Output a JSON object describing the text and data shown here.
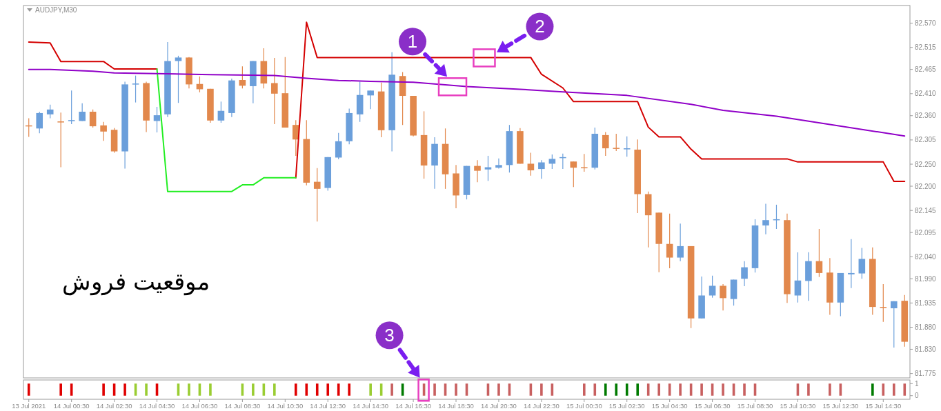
{
  "chart_data": [
    {
      "type": "candlestick",
      "title": "AUDJPY,M30",
      "x": [
        "2021-07-13T22:30",
        "2021-07-13T23:00",
        "2021-07-13T23:30",
        "2021-07-14T00:00",
        "2021-07-14T00:30",
        "2021-07-14T01:00",
        "2021-07-14T01:30",
        "2021-07-14T02:00",
        "2021-07-14T02:30",
        "2021-07-14T03:00",
        "2021-07-14T03:30",
        "2021-07-14T04:00",
        "2021-07-14T04:30",
        "2021-07-14T05:00",
        "2021-07-14T05:30",
        "2021-07-14T06:00",
        "2021-07-14T06:30",
        "2021-07-14T07:00",
        "2021-07-14T07:30",
        "2021-07-14T08:00",
        "2021-07-14T08:30",
        "2021-07-14T09:00",
        "2021-07-14T09:30",
        "2021-07-14T10:00",
        "2021-07-14T10:30",
        "2021-07-14T11:00",
        "2021-07-14T11:30",
        "2021-07-14T12:00",
        "2021-07-14T12:30",
        "2021-07-14T13:00",
        "2021-07-14T13:30",
        "2021-07-14T14:00",
        "2021-07-14T14:30",
        "2021-07-14T15:00",
        "2021-07-14T15:30",
        "2021-07-14T16:00",
        "2021-07-14T16:30",
        "2021-07-14T17:00",
        "2021-07-14T17:30",
        "2021-07-14T18:00",
        "2021-07-14T18:30",
        "2021-07-14T19:00",
        "2021-07-14T19:30",
        "2021-07-14T20:00",
        "2021-07-14T20:30",
        "2021-07-14T21:00",
        "2021-07-14T21:30",
        "2021-07-14T22:00",
        "2021-07-14T22:30",
        "2021-07-14T23:00",
        "2021-07-14T23:30",
        "2021-07-15T00:00",
        "2021-07-15T00:30",
        "2021-07-15T01:00",
        "2021-07-15T01:30",
        "2021-07-15T02:00",
        "2021-07-15T02:30",
        "2021-07-15T03:00",
        "2021-07-15T03:30",
        "2021-07-15T04:00",
        "2021-07-15T04:30",
        "2021-07-15T05:00",
        "2021-07-15T05:30",
        "2021-07-15T06:00",
        "2021-07-15T06:30",
        "2021-07-15T07:00",
        "2021-07-15T07:30",
        "2021-07-15T08:00",
        "2021-07-15T08:30",
        "2021-07-15T09:00",
        "2021-07-15T09:30",
        "2021-07-15T10:00",
        "2021-07-15T10:30",
        "2021-07-15T11:00",
        "2021-07-15T11:30",
        "2021-07-15T12:00",
        "2021-07-15T12:30",
        "2021-07-15T13:00",
        "2021-07-15T13:30",
        "2021-07-15T14:00",
        "2021-07-15T14:30",
        "2021-07-15T15:00",
        "2021-07-15T15:30"
      ],
      "ohlc": [
        [
          82.338,
          82.354,
          82.312,
          82.337
        ],
        [
          82.331,
          82.369,
          82.32,
          82.366
        ],
        [
          82.363,
          82.385,
          82.354,
          82.374
        ],
        [
          82.347,
          82.367,
          82.243,
          82.345
        ],
        [
          82.348,
          82.417,
          82.341,
          82.35
        ],
        [
          82.348,
          82.388,
          82.348,
          82.369
        ],
        [
          82.369,
          82.374,
          82.333,
          82.336
        ],
        [
          82.338,
          82.346,
          82.303,
          82.324
        ],
        [
          82.328,
          82.332,
          82.276,
          82.279
        ],
        [
          82.279,
          82.437,
          82.24,
          82.431
        ],
        [
          82.431,
          82.451,
          82.39,
          82.433
        ],
        [
          82.434,
          82.437,
          82.323,
          82.349
        ],
        [
          82.348,
          82.38,
          82.322,
          82.361
        ],
        [
          82.363,
          82.527,
          82.357,
          82.484
        ],
        [
          82.484,
          82.496,
          82.389,
          82.492
        ],
        [
          82.492,
          82.493,
          82.422,
          82.431
        ],
        [
          82.432,
          82.449,
          82.413,
          82.42
        ],
        [
          82.421,
          82.421,
          82.344,
          82.349
        ],
        [
          82.349,
          82.392,
          82.344,
          82.371
        ],
        [
          82.366,
          82.444,
          82.357,
          82.44
        ],
        [
          82.441,
          82.472,
          82.422,
          82.428
        ],
        [
          82.427,
          82.484,
          82.388,
          82.484
        ],
        [
          82.484,
          82.513,
          82.422,
          82.433
        ],
        [
          82.434,
          82.491,
          82.341,
          82.41
        ],
        [
          82.411,
          82.493,
          82.333,
          82.333
        ],
        [
          82.339,
          82.35,
          82.269,
          82.306
        ],
        [
          82.307,
          82.35,
          82.202,
          82.208
        ],
        [
          82.21,
          82.241,
          82.12,
          82.194
        ],
        [
          82.196,
          82.266,
          82.19,
          82.266
        ],
        [
          82.265,
          82.321,
          82.261,
          82.302
        ],
        [
          82.302,
          82.376,
          82.295,
          82.366
        ],
        [
          82.363,
          82.437,
          82.346,
          82.407
        ],
        [
          82.406,
          82.417,
          82.375,
          82.417
        ],
        [
          82.415,
          82.435,
          82.311,
          82.327
        ],
        [
          82.327,
          82.504,
          82.279,
          82.453
        ],
        [
          82.45,
          82.459,
          82.339,
          82.405
        ],
        [
          82.405,
          82.405,
          82.313,
          82.315
        ],
        [
          82.316,
          82.37,
          82.217,
          82.247
        ],
        [
          82.247,
          82.311,
          82.194,
          82.296
        ],
        [
          82.296,
          82.331,
          82.194,
          82.227
        ],
        [
          82.229,
          82.248,
          82.15,
          82.179
        ],
        [
          82.18,
          82.246,
          82.17,
          82.246
        ],
        [
          82.246,
          82.259,
          82.209,
          82.235
        ],
        [
          82.238,
          82.269,
          82.212,
          82.243
        ],
        [
          82.242,
          82.263,
          82.24,
          82.248
        ],
        [
          82.248,
          82.339,
          82.231,
          82.325
        ],
        [
          82.325,
          82.332,
          82.251,
          82.251
        ],
        [
          82.251,
          82.276,
          82.224,
          82.236
        ],
        [
          82.239,
          82.259,
          82.217,
          82.254
        ],
        [
          82.251,
          82.272,
          82.239,
          82.262
        ],
        [
          82.264,
          82.274,
          82.239,
          82.266
        ],
        [
          82.256,
          82.256,
          82.198,
          82.242
        ],
        [
          82.243,
          82.273,
          82.233,
          82.241
        ],
        [
          82.242,
          82.333,
          82.238,
          82.319
        ],
        [
          82.316,
          82.323,
          82.269,
          82.286
        ],
        [
          82.287,
          82.319,
          82.28,
          82.285
        ],
        [
          82.284,
          82.313,
          82.267,
          82.286
        ],
        [
          82.283,
          82.306,
          82.139,
          82.182
        ],
        [
          82.182,
          82.188,
          82.061,
          82.134
        ],
        [
          82.14,
          82.14,
          82.005,
          82.069
        ],
        [
          82.069,
          82.138,
          82.014,
          82.038
        ],
        [
          82.038,
          82.115,
          82.03,
          82.064
        ],
        [
          82.064,
          82.064,
          81.878,
          81.9
        ],
        [
          81.9,
          81.995,
          81.9,
          81.952
        ],
        [
          81.952,
          81.997,
          81.947,
          81.974
        ],
        [
          81.974,
          81.978,
          81.918,
          81.946
        ],
        [
          81.944,
          81.988,
          81.929,
          81.988
        ],
        [
          81.99,
          82.03,
          81.973,
          82.016
        ],
        [
          82.014,
          82.125,
          82.004,
          82.111
        ],
        [
          82.111,
          82.16,
          82.091,
          82.123
        ],
        [
          82.123,
          82.158,
          82.103,
          82.125
        ],
        [
          82.123,
          82.138,
          81.935,
          81.955
        ],
        [
          81.952,
          82.05,
          81.936,
          81.986
        ],
        [
          81.985,
          82.05,
          81.94,
          82.03
        ],
        [
          82.03,
          82.103,
          81.994,
          82.003
        ],
        [
          82.004,
          82.037,
          81.908,
          81.936
        ],
        [
          81.936,
          82.003,
          81.905,
          82.003
        ],
        [
          82.0,
          82.08,
          81.969,
          82.003
        ],
        [
          82.002,
          82.06,
          81.99,
          82.035
        ],
        [
          82.035,
          82.061,
          81.908,
          81.926
        ],
        [
          81.926,
          81.978,
          81.892,
          81.924
        ],
        [
          81.923,
          81.939,
          81.834,
          81.939
        ],
        [
          81.94,
          81.953,
          81.836,
          81.847
        ]
      ],
      "colors": [
        "#e2884c",
        "#6b9fdb",
        "#6b9fdb",
        "#e2884c",
        "#6b9fdb",
        "#6b9fdb",
        "#e2884c",
        "#e2884c",
        "#e2884c",
        "#6b9fdb",
        "#6b9fdb",
        "#e2884c",
        "#6b9fdb",
        "#6b9fdb",
        "#6b9fdb",
        "#e2884c",
        "#e2884c",
        "#e2884c",
        "#6b9fdb",
        "#6b9fdb",
        "#e2884c",
        "#6b9fdb",
        "#e2884c",
        "#e2884c",
        "#e2884c",
        "#e2884c",
        "#e2884c",
        "#e2884c",
        "#6b9fdb",
        "#6b9fdb",
        "#6b9fdb",
        "#6b9fdb",
        "#6b9fdb",
        "#e2884c",
        "#6b9fdb",
        "#e2884c",
        "#e2884c",
        "#e2884c",
        "#6b9fdb",
        "#e2884c",
        "#e2884c",
        "#6b9fdb",
        "#e2884c",
        "#6b9fdb",
        "#6b9fdb",
        "#6b9fdb",
        "#e2884c",
        "#e2884c",
        "#6b9fdb",
        "#6b9fdb",
        "#6b9fdb",
        "#e2884c",
        "#e2884c",
        "#6b9fdb",
        "#e2884c",
        "#e2884c",
        "#6b9fdb",
        "#e2884c",
        "#e2884c",
        "#e2884c",
        "#e2884c",
        "#6b9fdb",
        "#e2884c",
        "#6b9fdb",
        "#6b9fdb",
        "#e2884c",
        "#6b9fdb",
        "#6b9fdb",
        "#6b9fdb",
        "#6b9fdb",
        "#6b9fdb",
        "#e2884c",
        "#6b9fdb",
        "#6b9fdb",
        "#e2884c",
        "#e2884c",
        "#6b9fdb",
        "#6b9fdb",
        "#6b9fdb",
        "#e2884c",
        "#e2884c",
        "#6b9fdb",
        "#e2884c"
      ],
      "series": [
        {
          "type": "line",
          "color": "#d40000",
          "x": [
            "2021-07-13T22:30",
            "2021-07-13T23:30",
            "2021-07-14T00:00",
            "2021-07-14T02:00",
            "2021-07-14T02:30",
            "2021-07-14T04:30",
            "2021-07-14T05:00",
            "2021-07-14T11:00",
            "2021-07-14T11:30",
            "2021-07-14T12:00",
            "2021-07-14T22:00",
            "2021-07-14T22:30",
            "2021-07-14T23:30",
            "2021-07-15T00:00",
            "2021-07-15T03:00",
            "2021-07-15T03:30",
            "2021-07-15T04:00",
            "2021-07-15T05:00",
            "2021-07-15T05:30",
            "2021-07-15T06:00",
            "2021-07-15T10:00",
            "2021-07-15T10:30",
            "2021-07-15T14:30",
            "2021-07-15T15:00",
            "2021-07-15T15:30"
          ],
          "values": [
            82.527,
            82.525,
            82.483,
            82.483,
            82.466,
            82.466,
            null,
            82.219,
            82.572,
            82.492,
            82.492,
            82.454,
            82.423,
            82.392,
            82.392,
            82.334,
            82.312,
            82.312,
            82.284,
            82.262,
            82.262,
            82.255,
            82.255,
            82.211,
            82.211
          ]
        },
        {
          "type": "line",
          "color": "#22ee22",
          "x": [
            "2021-07-14T04:30",
            "2021-07-14T05:00",
            "2021-07-14T08:00",
            "2021-07-14T08:30",
            "2021-07-14T09:00",
            "2021-07-14T09:30",
            "2021-07-14T11:00"
          ],
          "values": [
            82.466,
            82.188,
            82.188,
            82.203,
            82.203,
            82.219,
            82.219
          ]
        },
        {
          "type": "line",
          "color": "#9000c8",
          "x": [
            "2021-07-13T22:30",
            "2021-07-13T23:30",
            "2021-07-14T01:30",
            "2021-07-14T02:30",
            "2021-07-14T04:00",
            "2021-07-14T07:00",
            "2021-07-14T09:00",
            "2021-07-14T10:00",
            "2021-07-14T11:30",
            "2021-07-14T13:00",
            "2021-07-14T14:30",
            "2021-07-14T16:30",
            "2021-07-14T18:30",
            "2021-07-14T19:00",
            "2021-07-14T21:30",
            "2021-07-14T23:30",
            "2021-07-15T02:30",
            "2021-07-15T05:30",
            "2021-07-15T07:00",
            "2021-07-15T09:30",
            "2021-07-15T12:00",
            "2021-07-15T15:30"
          ],
          "values": [
            82.465,
            82.465,
            82.461,
            82.457,
            82.456,
            82.453,
            82.452,
            82.451,
            82.445,
            82.44,
            82.438,
            82.436,
            82.428,
            82.426,
            82.42,
            82.414,
            82.406,
            82.386,
            82.372,
            82.359,
            82.34,
            82.314
          ]
        }
      ],
      "xlim": [
        "2021-07-13T22:15",
        "2021-07-15T15:45"
      ],
      "ylim": [
        81.765,
        82.61
      ],
      "yticks": [
        {
          "value": 82.57,
          "label": "82.570"
        },
        {
          "value": 82.515,
          "label": "82.515"
        },
        {
          "value": 82.465,
          "label": "82.465"
        },
        {
          "value": 82.41,
          "label": "82.410"
        },
        {
          "value": 82.36,
          "label": "82.360"
        },
        {
          "value": 82.305,
          "label": "82.305"
        },
        {
          "value": 82.25,
          "label": "82.250"
        },
        {
          "value": 82.2,
          "label": "82.200"
        },
        {
          "value": 82.145,
          "label": "82.145"
        },
        {
          "value": 82.095,
          "label": "82.095"
        },
        {
          "value": 82.04,
          "label": "82.040"
        },
        {
          "value": 81.99,
          "label": "81.990"
        },
        {
          "value": 81.935,
          "label": "81.935"
        },
        {
          "value": 81.88,
          "label": "81.880"
        },
        {
          "value": 81.83,
          "label": "81.830"
        },
        {
          "value": 81.775,
          "label": "81.775"
        }
      ],
      "tick_labels": "y",
      "annotations": [
        "موقعیت فروش",
        {
          "text": "1",
          "x": "2021-07-14T18:30",
          "y": 82.428
        },
        {
          "text": "2",
          "x": "2021-07-14T20:00",
          "y": 82.492
        }
      ]
    },
    {
      "type": "bar",
      "x": [
        "2021-07-13T22:30",
        "2021-07-14T00:00",
        "2021-07-14T00:30",
        "2021-07-14T02:00",
        "2021-07-14T02:30",
        "2021-07-14T03:00",
        "2021-07-14T03:30",
        "2021-07-14T04:00",
        "2021-07-14T04:30",
        "2021-07-14T05:30",
        "2021-07-14T06:00",
        "2021-07-14T06:30",
        "2021-07-14T07:00",
        "2021-07-14T08:30",
        "2021-07-14T09:00",
        "2021-07-14T09:30",
        "2021-07-14T10:00",
        "2021-07-14T11:00",
        "2021-07-14T11:30",
        "2021-07-14T12:00",
        "2021-07-14T12:30",
        "2021-07-14T13:00",
        "2021-07-14T13:30",
        "2021-07-14T14:30",
        "2021-07-14T15:00",
        "2021-07-14T15:30",
        "2021-07-14T16:00",
        "2021-07-14T17:00",
        "2021-07-14T17:30",
        "2021-07-14T18:00",
        "2021-07-14T18:30",
        "2021-07-14T19:00",
        "2021-07-14T20:00",
        "2021-07-14T20:30",
        "2021-07-14T21:00",
        "2021-07-14T22:00",
        "2021-07-14T22:30",
        "2021-07-14T23:00",
        "2021-07-15T00:30",
        "2021-07-15T01:00",
        "2021-07-15T01:30",
        "2021-07-15T02:00",
        "2021-07-15T02:30",
        "2021-07-15T03:00",
        "2021-07-15T03:30",
        "2021-07-15T04:00",
        "2021-07-15T04:30",
        "2021-07-15T05:00",
        "2021-07-15T05:30",
        "2021-07-15T06:00",
        "2021-07-15T06:30",
        "2021-07-15T07:00",
        "2021-07-15T07:30",
        "2021-07-15T08:00",
        "2021-07-15T08:30",
        "2021-07-15T10:30",
        "2021-07-15T11:00",
        "2021-07-15T12:00",
        "2021-07-15T12:30",
        "2021-07-15T14:00",
        "2021-07-15T14:30",
        "2021-07-15T15:00",
        "2021-07-15T15:30"
      ],
      "values": [
        1,
        1,
        1,
        1,
        1,
        1,
        1,
        1,
        1,
        1,
        1,
        1,
        1,
        1,
        1,
        1,
        1,
        1,
        1,
        1,
        1,
        1,
        1,
        1,
        1,
        1,
        1,
        1,
        1,
        1,
        1,
        1,
        1,
        1,
        1,
        1,
        1,
        1,
        1,
        1,
        1,
        1,
        1,
        1,
        1,
        1,
        1,
        1,
        1,
        1,
        1,
        1,
        1,
        1,
        1,
        1,
        1,
        1,
        1,
        1,
        1,
        1,
        1
      ],
      "colors": [
        "#e00000",
        "#e00000",
        "#e00000",
        "#e00000",
        "#e00000",
        "#e00000",
        "#9acd32",
        "#9acd32",
        "#e00000",
        "#9acd32",
        "#9acd32",
        "#9acd32",
        "#9acd32",
        "#9acd32",
        "#9acd32",
        "#9acd32",
        "#9acd32",
        "#e00000",
        "#e00000",
        "#e00000",
        "#e00000",
        "#e00000",
        "#e00000",
        "#9acd32",
        "#9acd32",
        "#c86060",
        "#007a00",
        "#c86060",
        "#c86060",
        "#c86060",
        "#c86060",
        "#c86060",
        "#c86060",
        "#c86060",
        "#c86060",
        "#c86060",
        "#c86060",
        "#c86060",
        "#c86060",
        "#c86060",
        "#007a00",
        "#007a00",
        "#007a00",
        "#007a00",
        "#c86060",
        "#c86060",
        "#c86060",
        "#c86060",
        "#c86060",
        "#c86060",
        "#c86060",
        "#c86060",
        "#c86060",
        "#c86060",
        "#c86060",
        "#c86060",
        "#c86060",
        "#c86060",
        "#c86060",
        "#007a00",
        "#c86060",
        "#c86060",
        "#c86060"
      ],
      "xlim": [
        "2021-07-13T22:15",
        "2021-07-15T15:45"
      ],
      "xticks": [
        {
          "value": "2021-07-13T22:30",
          "label": "13 Jul 2021"
        },
        {
          "value": "2021-07-14T00:30",
          "label": "14 Jul 00:30"
        },
        {
          "value": "2021-07-14T02:30",
          "label": "14 Jul 02:30"
        },
        {
          "value": "2021-07-14T04:30",
          "label": "14 Jul 04:30"
        },
        {
          "value": "2021-07-14T06:30",
          "label": "14 Jul 06:30"
        },
        {
          "value": "2021-07-14T08:30",
          "label": "14 Jul 08:30"
        },
        {
          "value": "2021-07-14T10:30",
          "label": "14 Jul 10:30"
        },
        {
          "value": "2021-07-14T12:30",
          "label": "14 Jul 12:30"
        },
        {
          "value": "2021-07-14T14:30",
          "label": "14 Jul 14:30"
        },
        {
          "value": "2021-07-14T16:30",
          "label": "14 Jul 16:30"
        },
        {
          "value": "2021-07-14T18:30",
          "label": "14 Jul 18:30"
        },
        {
          "value": "2021-07-14T20:30",
          "label": "14 Jul 20:30"
        },
        {
          "value": "2021-07-14T22:30",
          "label": "14 Jul 22:30"
        },
        {
          "value": "2021-07-15T00:30",
          "label": "15 Jul 00:30"
        },
        {
          "value": "2021-07-15T02:30",
          "label": "15 Jul 02:30"
        },
        {
          "value": "2021-07-15T04:30",
          "label": "15 Jul 04:30"
        },
        {
          "value": "2021-07-15T06:30",
          "label": "15 Jul 06:30"
        },
        {
          "value": "2021-07-15T08:30",
          "label": "15 Jul 08:30"
        },
        {
          "value": "2021-07-15T10:30",
          "label": "15 Jul 10:30"
        },
        {
          "value": "2021-07-15T12:30",
          "label": "15 Jul 12:30"
        },
        {
          "value": "2021-07-15T14:30",
          "label": "15 Jul 14:30"
        }
      ],
      "ylim": [
        -0.3,
        1.3
      ],
      "yticks": [
        0,
        1
      ],
      "annotations": [
        {
          "text": "3",
          "x": "2021-07-14T17:00",
          "y": 1
        }
      ]
    }
  ]
}
